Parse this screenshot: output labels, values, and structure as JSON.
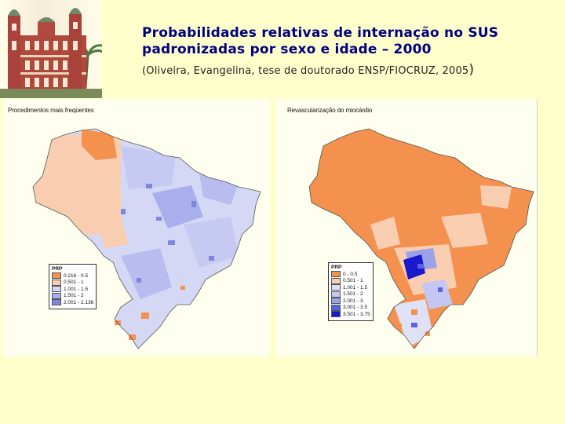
{
  "header": {
    "title_line1": "Probabilidades relativas de internação no SUS",
    "title_line2": "padronizadas por sexo e idade – 2000",
    "subtitle": "(Oliveira, Evangelina, tese de doutorado ENSP/FIOCRUZ, 2005",
    "subtitle_close": ")"
  },
  "logo": {
    "icon": "fiocruz-castle-icon"
  },
  "maps": [
    {
      "label": "Procedimentos mais freqüentes",
      "legend_title": "PRP",
      "legend": [
        {
          "range": "0.216 - 0.5",
          "color": "#f4914e"
        },
        {
          "range": "0.501 - 1",
          "color": "#f9cdb0"
        },
        {
          "range": "1.001 - 1.5",
          "color": "#d5d8f4"
        },
        {
          "range": "1.501 - 2",
          "color": "#a9aeec"
        },
        {
          "range": "2.001 - 2.136",
          "color": "#7f86e0"
        }
      ]
    },
    {
      "label": "Revascularização do miocárdio",
      "legend_title": "PRP",
      "legend": [
        {
          "range": "0 - 0.5",
          "color": "#f4914e"
        },
        {
          "range": "0.501 - 1",
          "color": "#f9cdb0"
        },
        {
          "range": "1.001 - 1.5",
          "color": "#dfe1f6"
        },
        {
          "range": "1.501 - 2",
          "color": "#c3c7f2"
        },
        {
          "range": "2.001 - 3",
          "color": "#9ba2ea"
        },
        {
          "range": "3.001 - 3.5",
          "color": "#5c63de"
        },
        {
          "range": "3.501 - 3.75",
          "color": "#1a1acc"
        }
      ]
    }
  ]
}
